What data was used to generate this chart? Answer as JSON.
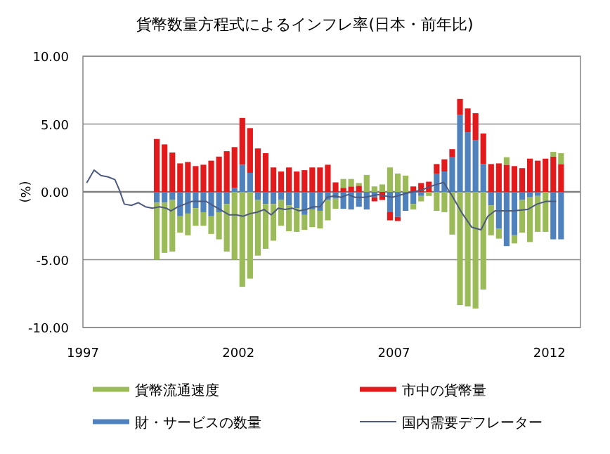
{
  "chart_data": {
    "type": "bar",
    "stacked": true,
    "title": "貨幣数量方程式によるインフレ率(日本・前年比)",
    "ylabel": "(%)",
    "xlim": [
      1997,
      2013
    ],
    "xticks": [
      1997,
      2002,
      2007,
      2012
    ],
    "ylim": [
      -10,
      10
    ],
    "yticks": [
      {
        "value": -10,
        "label": "-10.00"
      },
      {
        "value": -5,
        "label": "-5.00"
      },
      {
        "value": 0,
        "label": "0.00"
      },
      {
        "value": 5,
        "label": "5.00"
      },
      {
        "value": 10,
        "label": "10.00"
      }
    ],
    "grid": "y",
    "legend": "bottom",
    "x": [
      1999.375,
      1999.625,
      1999.875,
      2000.125,
      2000.375,
      2000.625,
      2000.875,
      2001.125,
      2001.375,
      2001.625,
      2001.875,
      2002.125,
      2002.375,
      2002.625,
      2002.875,
      2003.125,
      2003.375,
      2003.625,
      2003.875,
      2004.125,
      2004.375,
      2004.625,
      2004.875,
      2005.125,
      2005.375,
      2005.625,
      2005.875,
      2006.125,
      2006.375,
      2006.625,
      2006.875,
      2007.125,
      2007.375,
      2007.625,
      2007.875,
      2008.125,
      2008.375,
      2008.625,
      2008.875,
      2009.125,
      2009.375,
      2009.625,
      2009.875,
      2010.125,
      2010.375,
      2010.625,
      2010.875,
      2011.125,
      2011.375,
      2011.625,
      2011.875,
      2012.125,
      2012.375
    ],
    "series": [
      {
        "name": "財・サービスの数量",
        "color": "#4f81bd",
        "values": [
          -0.8,
          -0.8,
          -0.6,
          -1.8,
          -1.6,
          -1.2,
          -1.5,
          -1.8,
          -1.5,
          -0.9,
          0.3,
          2.0,
          1.4,
          -0.6,
          -0.9,
          -0.9,
          -0.6,
          -1.0,
          -1.2,
          -1.7,
          -1.3,
          -1.4,
          -0.6,
          -0.5,
          -1.25,
          -1.3,
          -1.1,
          -1.3,
          -0.4,
          0,
          -1.5,
          -1.85,
          -1.4,
          -0.9,
          -0.3,
          0,
          1.35,
          1.5,
          2.55,
          5.7,
          4.4,
          3.8,
          2.05,
          -1.0,
          -2.7,
          -4.0,
          -3.2,
          -0.6,
          -0.4,
          -0.3,
          0,
          -3.5,
          -3.5
        ]
      },
      {
        "name": "市中の貨幣量",
        "color": "#e31a1c",
        "values": [
          3.9,
          3.5,
          2.9,
          2.1,
          2.2,
          1.9,
          2.0,
          2.3,
          2.6,
          3.0,
          3.0,
          3.45,
          3.3,
          3.2,
          2.85,
          1.8,
          1.5,
          1.8,
          1.5,
          1.6,
          1.8,
          1.8,
          2.0,
          0.7,
          0.3,
          0.4,
          0.45,
          0,
          -0.3,
          -0.6,
          -0.6,
          -0.3,
          0,
          0.4,
          0.65,
          0.75,
          0.7,
          0.9,
          0.6,
          1.15,
          1.75,
          2.0,
          2.25,
          2.05,
          2.1,
          2.0,
          1.9,
          1.75,
          2.45,
          2.3,
          2.45,
          2.6,
          2.05
        ]
      },
      {
        "name": "貨幣流通速度",
        "color": "#9bbb59",
        "values": [
          -4.2,
          -3.7,
          -3.8,
          -1.2,
          -1.6,
          -1.3,
          -1.0,
          -1.3,
          -2.0,
          -3.5,
          -5.0,
          -7.0,
          -6.4,
          -4.1,
          -3.3,
          -2.7,
          -1.9,
          -1.9,
          -1.75,
          -1.1,
          -1.3,
          -1.3,
          -1.5,
          -0.75,
          0.65,
          0.55,
          0.2,
          1.25,
          0.4,
          0.55,
          1.8,
          1.35,
          1.2,
          -0.4,
          -0.4,
          -0.3,
          -1.4,
          -1.5,
          -3.15,
          -8.35,
          -8.45,
          -8.6,
          -7.2,
          -2.2,
          -0.75,
          0.55,
          -0.6,
          -2.4,
          -3.3,
          -2.65,
          -2.95,
          0.35,
          0.8
        ]
      },
      {
        "name": "国内需要デフレーター",
        "type": "line",
        "color": "#4d5a80",
        "marker": "none",
        "line_style": "solid",
        "x": [
          1997.13,
          1997.36,
          1997.58,
          1997.81,
          1998.03,
          1998.18,
          1998.33,
          1998.56,
          1998.78,
          1999.01,
          1999.23,
          1999.46,
          1999.68,
          1999.83,
          2000.06,
          2000.28,
          2000.51,
          2000.73,
          2000.96,
          2001.18,
          2001.41,
          2001.71,
          2001.93,
          2002.15,
          2002.38,
          2002.6,
          2002.83,
          2003.05,
          2003.28,
          2003.5,
          2003.73,
          2003.95,
          2004.18,
          2004.4,
          2004.63,
          2004.85,
          2005.08,
          2005.3,
          2005.53,
          2005.75,
          2006.05,
          2006.5,
          2006.95,
          2007.4,
          2007.85,
          2008.3,
          2008.6,
          2008.9,
          2009.2,
          2009.5,
          2009.8,
          2010.02,
          2010.25,
          2010.55,
          2010.85,
          2011.3,
          2011.6,
          2011.9,
          2012.2
        ],
        "values": [
          0.7,
          1.6,
          1.2,
          1.1,
          0.9,
          0.1,
          -0.9,
          -1.0,
          -0.8,
          -1.1,
          -1.2,
          -1.1,
          -1.2,
          -1.4,
          -1.1,
          -0.9,
          -0.7,
          -0.7,
          -0.7,
          -1.0,
          -1.3,
          -1.7,
          -1.7,
          -1.8,
          -1.6,
          -1.5,
          -1.3,
          -1.7,
          -1.2,
          -1.3,
          -1.2,
          -1.4,
          -1.3,
          -1.1,
          -1.1,
          -0.4,
          -0.3,
          -0.4,
          -0.2,
          -0.4,
          -0.4,
          -0.2,
          -0.4,
          -0.1,
          0.1,
          0.5,
          0.7,
          -0.4,
          -1.6,
          -2.6,
          -2.8,
          -1.8,
          -1.4,
          -1.4,
          -1.4,
          -1.3,
          -0.9,
          -0.7,
          -0.7
        ]
      }
    ]
  }
}
